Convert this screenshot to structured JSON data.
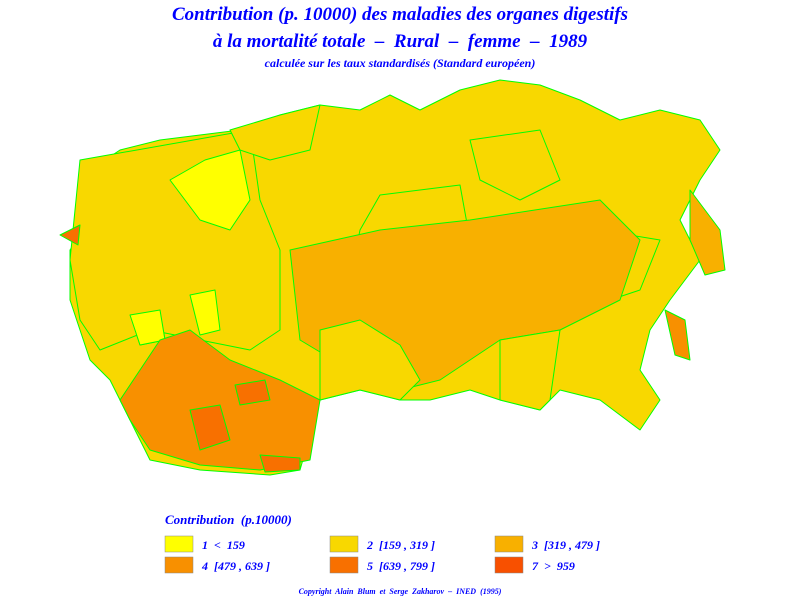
{
  "header": {
    "title_lines": [
      "Contribution (p. 10000) des maladies des organes digestifs",
      "à la mortalité totale  –  Rural  –  femme  –  1989"
    ],
    "subtitle": "calculée sur les taux standardisés (Standard européen)"
  },
  "legend": {
    "title": "Contribution  (p.10000)",
    "items": [
      {
        "label": "1  <  159",
        "color": "#ffff00"
      },
      {
        "label": "2  [159 , 319 ]",
        "color": "#f8d800"
      },
      {
        "label": "3  [319 , 479 ]",
        "color": "#f8b000"
      },
      {
        "label": "4  [479 , 639 ]",
        "color": "#f89000"
      },
      {
        "label": "5  [639 , 799 ]",
        "color": "#f87000"
      },
      {
        "label": "7  >  959",
        "color": "#f85000"
      }
    ]
  },
  "footer": {
    "copyright": "Copyright  Alain  Blum  et  Serge  Zakharov  –  INED  (1995)"
  }
}
